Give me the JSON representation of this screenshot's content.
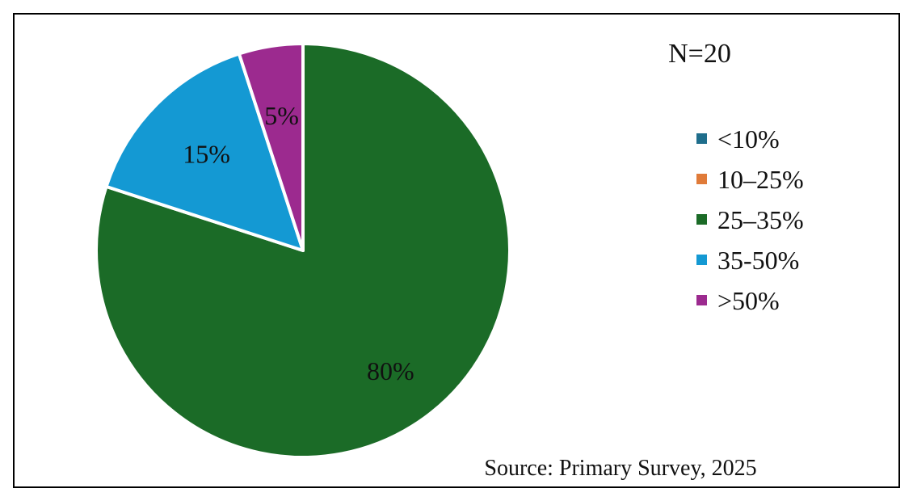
{
  "chart_data": {
    "type": "pie",
    "title": "",
    "annotation": "N=20",
    "source": "Source: Primary Survey, 2025",
    "legend_position": "right",
    "slices": [
      {
        "label": "<10%",
        "value": 0,
        "data_label": "",
        "color": "#1f6e8c"
      },
      {
        "label": "10–25%",
        "value": 0,
        "data_label": "",
        "color": "#e07b39"
      },
      {
        "label": "25–35%",
        "value": 80,
        "data_label": "80%",
        "color": "#1b6b27"
      },
      {
        "label": "35-50%",
        "value": 15,
        "data_label": "15%",
        "color": "#1499d3"
      },
      {
        "label": ">50%",
        "value": 5,
        "data_label": "5%",
        "color": "#9c2a8f"
      }
    ]
  }
}
